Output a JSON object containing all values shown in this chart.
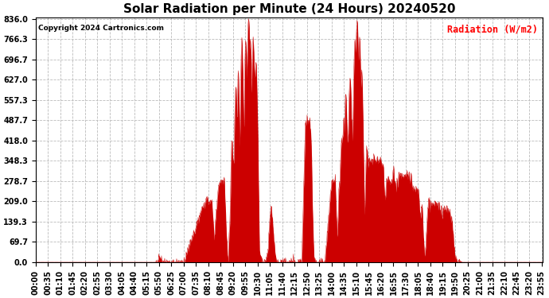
{
  "title": "Solar Radiation per Minute (24 Hours) 20240520",
  "copyright_text": "Copyright 2024 Cartronics.com",
  "legend_label": "Radiation (W/m2)",
  "legend_color": "#ff0000",
  "y_ticks": [
    0.0,
    69.7,
    139.3,
    209.0,
    278.7,
    348.3,
    418.0,
    487.7,
    557.3,
    627.0,
    696.7,
    766.3,
    836.0
  ],
  "y_max": 836.0,
  "y_min": 0.0,
  "fill_color": "#cc0000",
  "line_color": "#cc0000",
  "background_color": "#ffffff",
  "plot_bg_color": "#ffffff",
  "grid_color": "#bbbbbb",
  "title_fontsize": 11,
  "tick_fontsize": 7,
  "minutes_per_day": 1440,
  "x_tick_interval": 35
}
